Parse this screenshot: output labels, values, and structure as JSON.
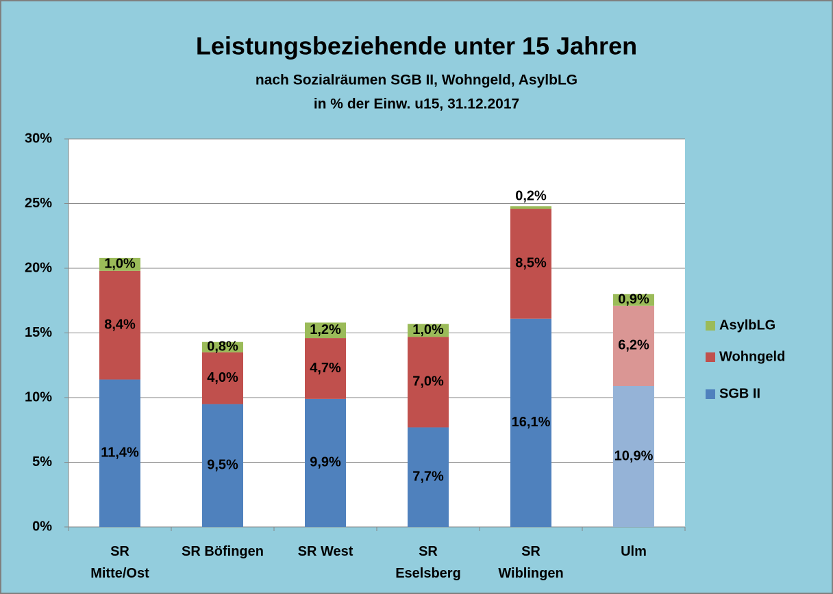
{
  "chart_data": {
    "type": "stacked_bar",
    "title": "Leistungsbeziehende unter 15 Jahren",
    "subtitle": [
      "nach Sozialräumen SGB II, Wohngeld, AsylbLG",
      "in % der Einw. u15, 31.12.2017"
    ],
    "categories": [
      "SR\nMitte/Ost",
      "SR Böfingen",
      "SR West",
      "SR\nEselsberg",
      "SR\nWiblingen",
      "Ulm"
    ],
    "series": [
      {
        "name": "SGB II",
        "color": "#4f81bd",
        "colors": [
          "#4f81bd",
          "#4f81bd",
          "#4f81bd",
          "#4f81bd",
          "#4f81bd",
          "#95b3d7"
        ],
        "values": [
          11.4,
          9.5,
          9.9,
          7.7,
          16.1,
          10.9
        ],
        "value_labels": [
          "11,4%",
          "9,5%",
          "9,9%",
          "7,7%",
          "16,1%",
          "10,9%"
        ]
      },
      {
        "name": "Wohngeld",
        "color": "#c0504d",
        "colors": [
          "#c0504d",
          "#c0504d",
          "#c0504d",
          "#c0504d",
          "#c0504d",
          "#da9694"
        ],
        "values": [
          8.4,
          4.0,
          4.7,
          7.0,
          8.5,
          6.2
        ],
        "value_labels": [
          "8,4%",
          "4,0%",
          "4,7%",
          "7,0%",
          "8,5%",
          "6,2%"
        ]
      },
      {
        "name": "AsylbLG",
        "color": "#9bbb59",
        "colors": [
          "#9bbb59",
          "#9bbb59",
          "#9bbb59",
          "#9bbb59",
          "#9bbb59",
          "#9bbb59"
        ],
        "values": [
          1.0,
          0.8,
          1.2,
          1.0,
          0.2,
          0.9
        ],
        "value_labels": [
          "1,0%",
          "0,8%",
          "1,2%",
          "1,0%",
          "0,2%",
          "0,9%"
        ]
      }
    ],
    "ylim": [
      0,
      30
    ],
    "yticks": [
      {
        "value": 0,
        "label": "0%"
      },
      {
        "value": 5,
        "label": "5%"
      },
      {
        "value": 10,
        "label": "10%"
      },
      {
        "value": 15,
        "label": "15%"
      },
      {
        "value": 20,
        "label": "20%"
      },
      {
        "value": 25,
        "label": "25%"
      },
      {
        "value": 30,
        "label": "30%"
      }
    ],
    "grid": true,
    "legend": "right"
  }
}
